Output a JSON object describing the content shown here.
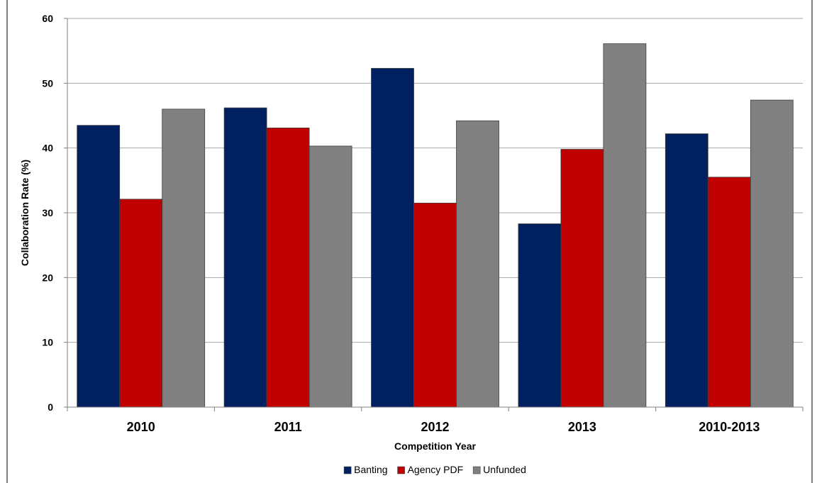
{
  "chart_data": {
    "type": "bar",
    "title": "",
    "xlabel": "Competition Year",
    "ylabel": "Collaboration Rate (%)",
    "ylim": [
      0,
      60
    ],
    "yticks": [
      0,
      10,
      20,
      30,
      40,
      50,
      60
    ],
    "grid": "horizontal",
    "legend_position": "bottom",
    "categories": [
      "2010",
      "2011",
      "2012",
      "2013",
      "2010-2013"
    ],
    "series": [
      {
        "name": "Banting",
        "color": "#002060",
        "values": [
          43.5,
          46.2,
          52.3,
          28.3,
          42.2
        ]
      },
      {
        "name": "Agency PDF",
        "color": "#c00000",
        "values": [
          32.1,
          43.1,
          31.5,
          39.8,
          35.5
        ]
      },
      {
        "name": "Unfunded",
        "color": "#808080",
        "values": [
          46.0,
          40.3,
          44.2,
          56.1,
          47.4
        ]
      }
    ]
  }
}
